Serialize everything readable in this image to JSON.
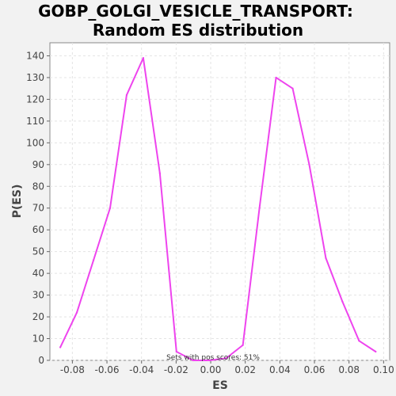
{
  "chart_data": {
    "type": "line",
    "title_lines": [
      "GOBP_GOLGI_VESICLE_TRANSPORT:",
      "Random ES distribution"
    ],
    "xlabel": "ES",
    "ylabel": "P(ES)",
    "xlim": [
      -0.093,
      0.1035
    ],
    "ylim": [
      0,
      146
    ],
    "xticks": [
      -0.08,
      -0.06,
      -0.04,
      -0.02,
      0.0,
      0.02,
      0.04,
      0.06,
      0.08,
      0.1
    ],
    "xtick_labels": [
      "-0.08",
      "-0.06",
      "-0.04",
      "-0.02",
      "0.00",
      "0.02",
      "0.04",
      "0.06",
      "0.08",
      "0.10"
    ],
    "yticks": [
      0,
      10,
      20,
      30,
      40,
      50,
      60,
      70,
      80,
      90,
      100,
      110,
      120,
      130,
      140
    ],
    "grid": true,
    "series": [
      {
        "color": "#ee44ee",
        "x": [
          -0.087,
          -0.0774,
          -0.0678,
          -0.0582,
          -0.0486,
          -0.039,
          -0.0294,
          -0.0198,
          -0.0102,
          -0.0006,
          0.009,
          0.0186,
          0.0282,
          0.0378,
          0.0474,
          0.057,
          0.0666,
          0.0762,
          0.0858,
          0.0954
        ],
        "y": [
          6,
          22,
          46,
          70,
          122,
          139,
          86,
          4,
          0,
          0,
          1,
          7,
          70,
          130,
          125,
          90,
          47,
          27,
          9,
          4
        ]
      }
    ],
    "annotation": "Sets with pos scores: 51%"
  }
}
